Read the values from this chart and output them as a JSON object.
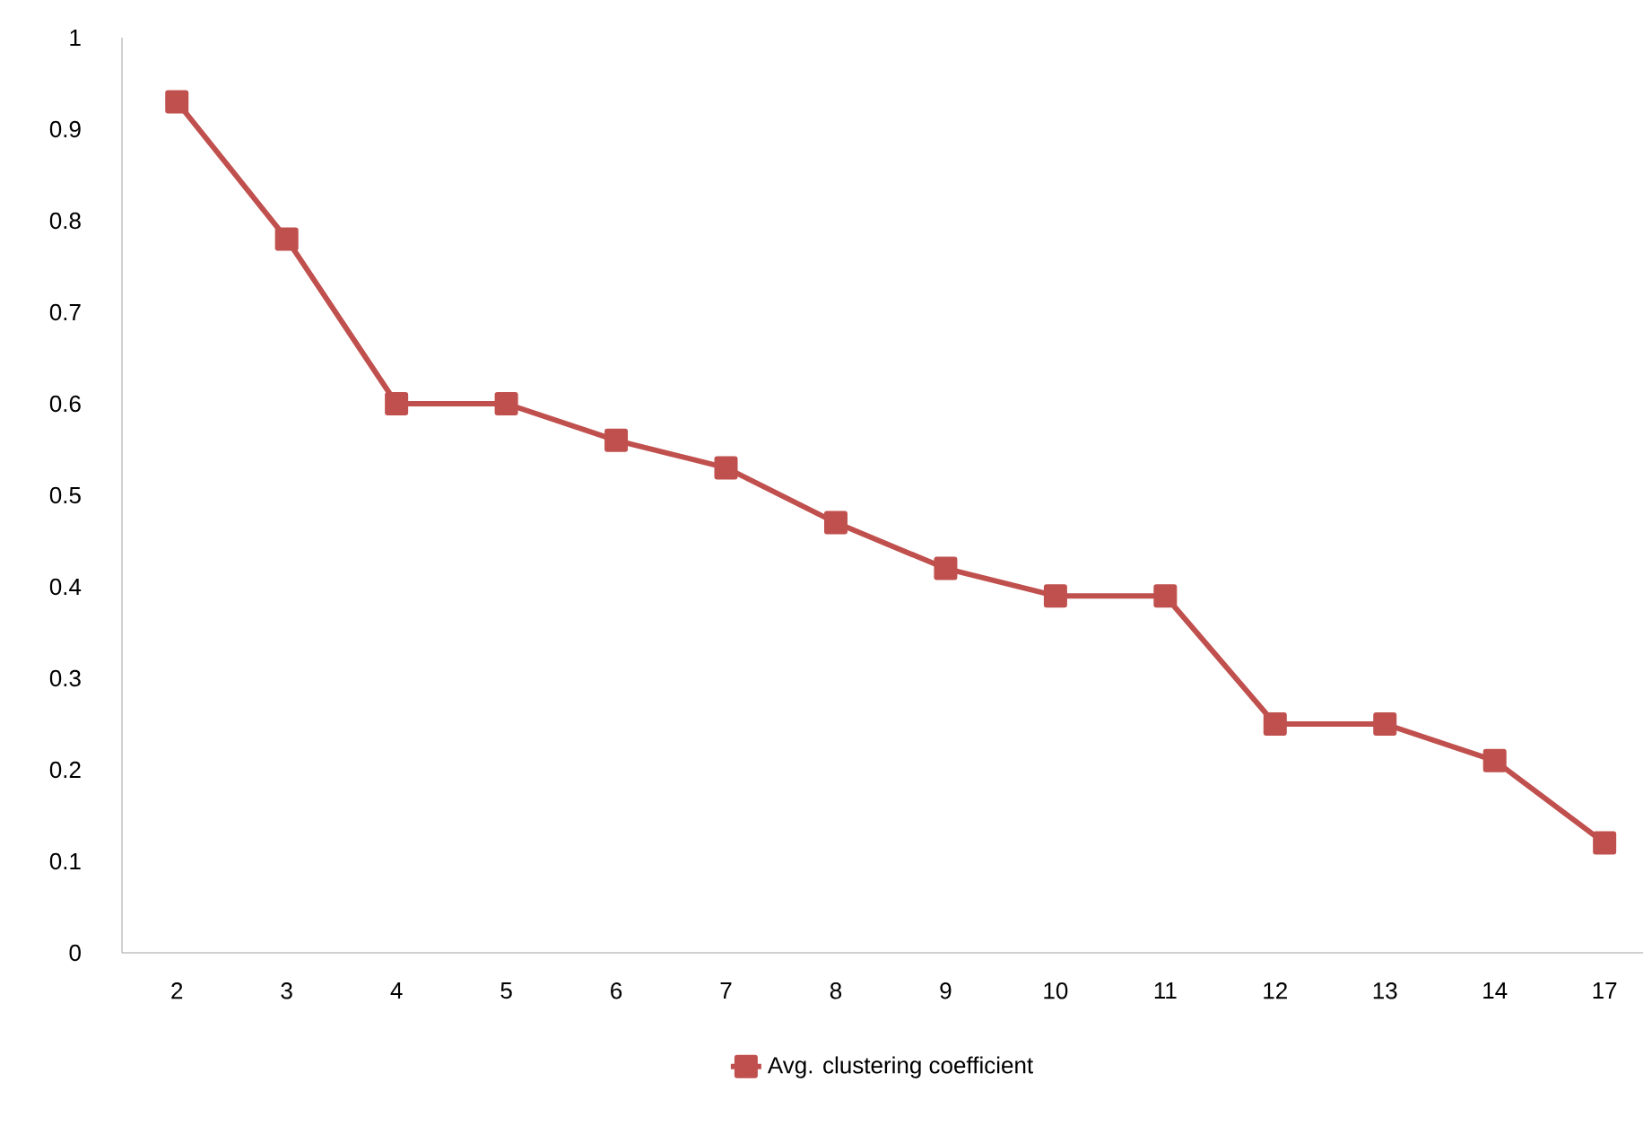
{
  "chart_data": {
    "type": "line",
    "categories": [
      "2",
      "3",
      "4",
      "5",
      "6",
      "7",
      "8",
      "9",
      "10",
      "11",
      "12",
      "13",
      "14",
      "17"
    ],
    "series": [
      {
        "name": "Avg. clustering coefficient",
        "color": "#c0504d",
        "values": [
          0.93,
          0.78,
          0.6,
          0.6,
          0.56,
          0.53,
          0.47,
          0.42,
          0.39,
          0.39,
          0.25,
          0.25,
          0.21,
          0.12
        ]
      }
    ],
    "ylim": [
      0,
      1
    ],
    "yticks": [
      0,
      0.1,
      0.2,
      0.3,
      0.4,
      0.5,
      0.6,
      0.7,
      0.8,
      0.9,
      1
    ],
    "legend": "bottom",
    "marker": "square"
  }
}
